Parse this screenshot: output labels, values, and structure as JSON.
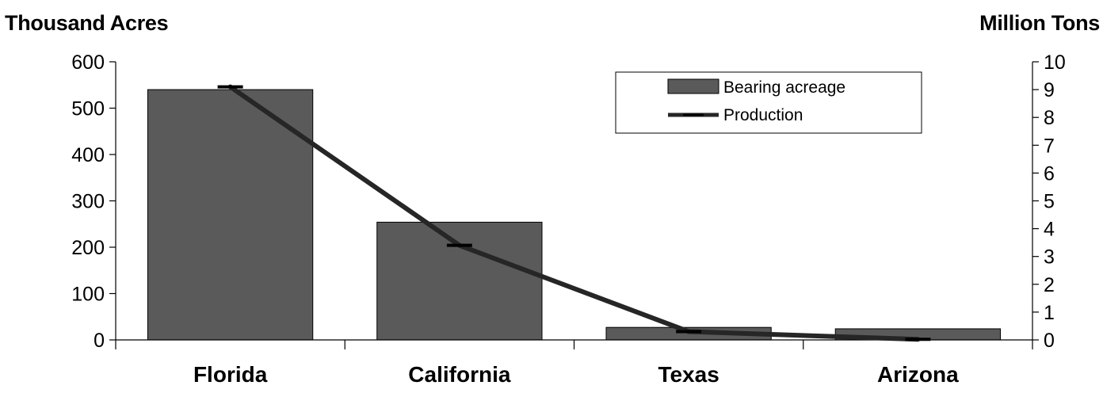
{
  "chart_data": {
    "type": "bar",
    "categories": [
      "Florida",
      "California",
      "Texas",
      "Arizona"
    ],
    "series": [
      {
        "name": "Bearing acreage",
        "type": "bar",
        "axis": "left",
        "values": [
          540,
          254,
          27,
          24
        ],
        "color": "#5a5a5a"
      },
      {
        "name": "Production",
        "type": "line",
        "axis": "right",
        "values": [
          9.1,
          3.4,
          0.3,
          0.02
        ],
        "color": "#262626"
      }
    ],
    "ylabel_left": "Thousand Acres",
    "ylabel_right": "Million Tons",
    "ylim_left": [
      0,
      600
    ],
    "ylim_right": [
      0,
      10
    ],
    "yticks_left": [
      0,
      100,
      200,
      300,
      400,
      500,
      600
    ],
    "yticks_right": [
      0,
      1,
      2,
      3,
      4,
      5,
      6,
      7,
      8,
      9,
      10
    ],
    "grid": false,
    "legend_position": "top-right"
  }
}
